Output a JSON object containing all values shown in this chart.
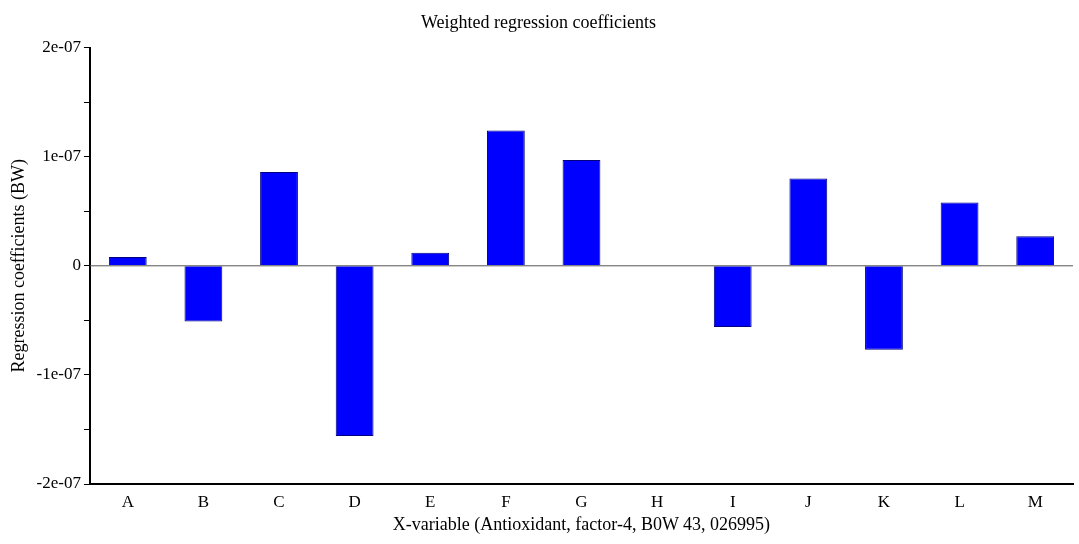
{
  "chart_data": {
    "type": "bar",
    "title": "Weighted regression coefficients",
    "xlabel": "X-variable (Antioxidant, factor-4, B0W 43, 026995)",
    "ylabel": "Regression coefficients (BW)",
    "categories": [
      "A",
      "B",
      "C",
      "D",
      "E",
      "F",
      "G",
      "H",
      "I",
      "J",
      "K",
      "L",
      "M"
    ],
    "values": [
      8e-09,
      -5.1e-08,
      8.6e-08,
      -1.56e-07,
      1.2e-08,
      1.24e-07,
      9.7e-08,
      0,
      -5.6e-08,
      8e-08,
      -7.7e-08,
      5.8e-08,
      2.7e-08
    ],
    "color": "#0000ff",
    "ylim": [
      -2e-07,
      2e-07
    ],
    "yticks": [
      {
        "value": -2e-07,
        "label": "-2e-07"
      },
      {
        "value": -1.5e-07,
        "label": null
      },
      {
        "value": -1e-07,
        "label": "-1e-07"
      },
      {
        "value": -5e-08,
        "label": null
      },
      {
        "value": 0,
        "label": "0"
      },
      {
        "value": 5e-08,
        "label": null
      },
      {
        "value": 1e-07,
        "label": "1e-07"
      },
      {
        "value": 1.5e-07,
        "label": null
      },
      {
        "value": 2e-07,
        "label": "2e-07"
      }
    ],
    "ref_lines": [
      {
        "axis": "y",
        "value": 0,
        "color": "#555555"
      }
    ],
    "legend": false
  }
}
